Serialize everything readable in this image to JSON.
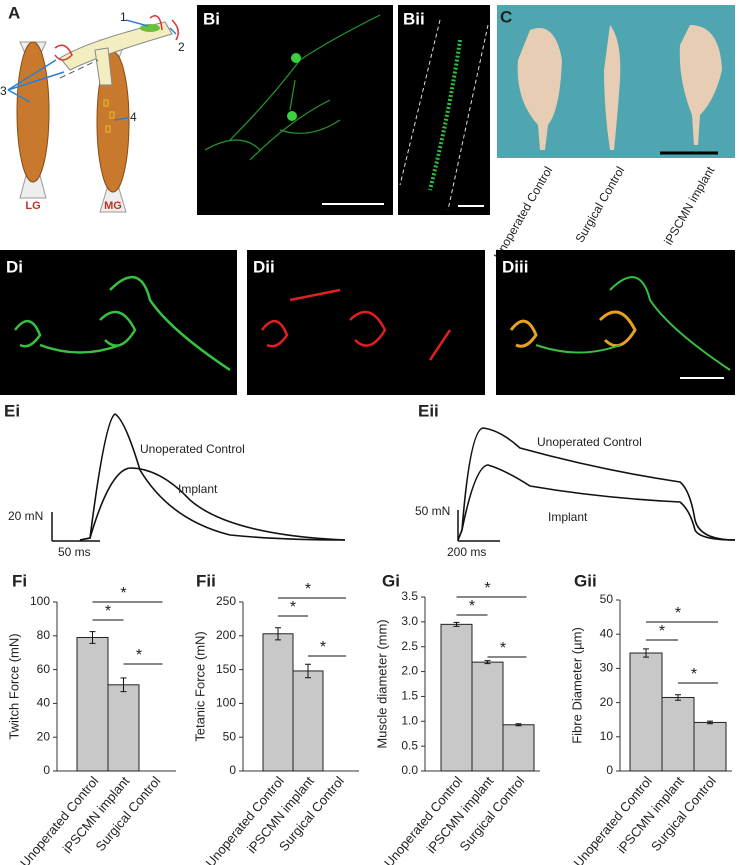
{
  "panels": {
    "A": {
      "label": "A",
      "markers": [
        "1",
        "2",
        "3",
        "4"
      ],
      "muscles": [
        "LG",
        "MG"
      ]
    },
    "Bi": {
      "label": "Bi"
    },
    "Bii": {
      "label": "Bii"
    },
    "C": {
      "label": "C",
      "samples": [
        "Unoperated Control",
        "Surgical Control",
        "iPSCMN implant"
      ]
    },
    "Di": {
      "label": "Di"
    },
    "Dii": {
      "label": "Dii"
    },
    "Diii": {
      "label": "Diii"
    },
    "Ei": {
      "label": "Ei",
      "traces": [
        "Unoperated Control",
        "Implant"
      ],
      "scale": [
        "20 mN",
        "50 ms"
      ]
    },
    "Eii": {
      "label": "Eii",
      "traces": [
        "Unoperated Control",
        "Implant"
      ],
      "scale": [
        "50 mN",
        "200 ms"
      ]
    }
  },
  "chart_data": [
    {
      "type": "bar",
      "label": "Fi",
      "y_label": "Twitch Force (mN)",
      "categories": [
        "Unoperated Control",
        "iPSCMN implant",
        "Surgical Control"
      ],
      "values": [
        79,
        51,
        null
      ],
      "errors": [
        3.5,
        4,
        null
      ],
      "color": "#c8c8c8",
      "ylim": [
        0,
        100
      ],
      "yticks": [
        0,
        20,
        40,
        60,
        80,
        100
      ],
      "annotations": [
        "*",
        "*",
        "*"
      ]
    },
    {
      "type": "bar",
      "label": "Fii",
      "y_label": "Tetanic Force (mN)",
      "categories": [
        "Unoperated Control",
        "iPSCMN implant",
        "Surgical Control"
      ],
      "values": [
        203,
        148,
        null
      ],
      "errors": [
        9,
        10,
        null
      ],
      "color": "#c8c8c8",
      "ylim": [
        0,
        250
      ],
      "yticks": [
        0,
        50,
        100,
        150,
        200,
        250
      ],
      "annotations": [
        "*",
        "*",
        "*"
      ]
    },
    {
      "type": "bar",
      "label": "Gi",
      "y_label": "Muscle diameter (mm)",
      "categories": [
        "Unoperated Control",
        "iPSCMN implant",
        "Surgical Control"
      ],
      "values": [
        2.95,
        2.19,
        0.93
      ],
      "errors": [
        0.04,
        0.03,
        0.02
      ],
      "color": "#c8c8c8",
      "ylim": [
        0,
        3.5
      ],
      "yticks": [
        {
          "value": 0,
          "label": "0.0"
        },
        0.5,
        {
          "value": 1,
          "label": "1.0"
        },
        1.5,
        {
          "value": 2,
          "label": "2.0"
        },
        2.5,
        {
          "value": 3,
          "label": "3.0"
        },
        3.5
      ],
      "annotations": [
        "*",
        "*",
        "*"
      ]
    },
    {
      "type": "bar",
      "label": "Gii",
      "y_label": "Fibre Diameter (µm)",
      "categories": [
        "Unoperated Control",
        "iPSCMN implant",
        "Surgical Control"
      ],
      "values": [
        34.5,
        21.5,
        14.2
      ],
      "errors": [
        1.2,
        0.8,
        0.4
      ],
      "color": "#c8c8c8",
      "ylim": [
        0,
        50
      ],
      "yticks": [
        0,
        10,
        20,
        30,
        40,
        50
      ],
      "annotations": [
        "*",
        "*",
        "*"
      ]
    }
  ]
}
